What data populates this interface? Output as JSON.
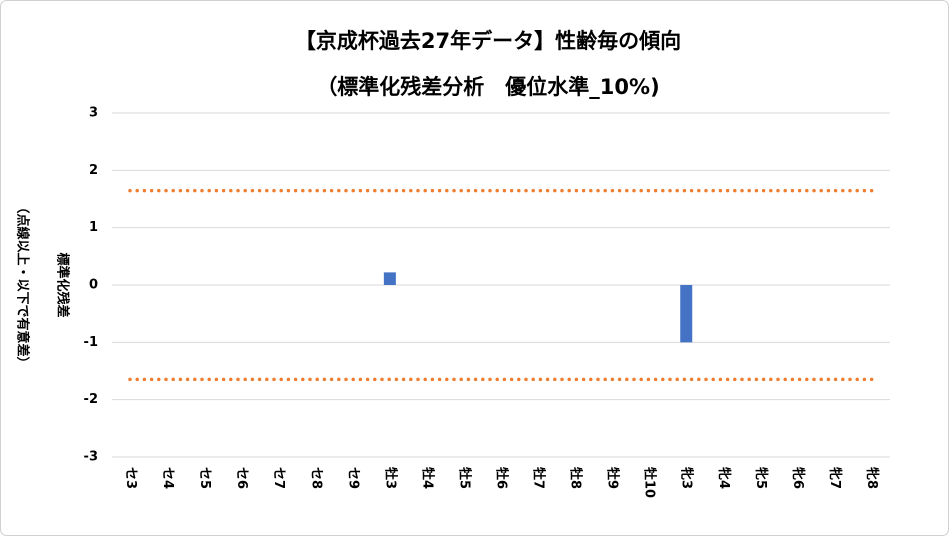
{
  "chart_data": {
    "type": "bar",
    "title": "【京成杯過去27年データ】性齢毎の傾向",
    "subtitle": "（標準化残差分析　優位水準_10%)",
    "y_label": "標準化残差",
    "y_label_note": "（点線以上・以下で有意差）",
    "categories": [
      "セ3",
      "セ4",
      "セ5",
      "セ6",
      "セ7",
      "セ8",
      "セ9",
      "牡3",
      "牡4",
      "牡5",
      "牡6",
      "牡7",
      "牡8",
      "牡9",
      "牡10",
      "牝3",
      "牝4",
      "牝5",
      "牝6",
      "牝7",
      "牝8"
    ],
    "values": [
      null,
      null,
      null,
      null,
      null,
      null,
      null,
      0.22,
      null,
      null,
      null,
      null,
      null,
      null,
      null,
      -1.0,
      null,
      null,
      null,
      null,
      null
    ],
    "color": "#4472c4",
    "reference_lines": [
      1.645,
      -1.645
    ],
    "reference_color": "#ed7d31",
    "ylim": [
      -3,
      3
    ],
    "yticks": [
      3,
      2,
      1,
      0,
      -1,
      -2,
      -3
    ],
    "grid": true
  }
}
